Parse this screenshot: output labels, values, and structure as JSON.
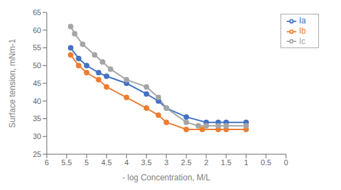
{
  "chart_data": {
    "type": "line",
    "xlabel": "- log Concentration, M/L",
    "ylabel": "Surface tension, mNm-1",
    "xlim": [
      6,
      0
    ],
    "ylim": [
      25,
      65
    ],
    "xticks": [
      6,
      5.5,
      5,
      4.5,
      4,
      3.5,
      3,
      2.5,
      2,
      1.5,
      1,
      0.5,
      0
    ],
    "yticks": [
      25,
      30,
      35,
      40,
      45,
      50,
      55,
      60,
      65
    ],
    "series": [
      {
        "name": "Ia",
        "color": "#4472C4",
        "x": [
          5.4,
          5.2,
          5.0,
          4.7,
          4.5,
          4.0,
          3.5,
          3.2,
          3.0,
          2.5,
          2.0,
          1.7,
          1.5,
          1.0
        ],
        "values": [
          55.0,
          52.0,
          50.0,
          48.0,
          47.0,
          45.0,
          42.0,
          40.0,
          38.0,
          35.5,
          34.0,
          34.0,
          34.0,
          34.0
        ]
      },
      {
        "name": "Ib",
        "color": "#ED7D31",
        "x": [
          5.4,
          5.2,
          5.0,
          4.7,
          4.5,
          4.0,
          3.5,
          3.2,
          3.0,
          2.5,
          2.1,
          1.7,
          1.5,
          1.0
        ],
        "values": [
          53.0,
          50.0,
          48.0,
          46.0,
          44.0,
          41.0,
          38.0,
          36.0,
          34.0,
          32.0,
          32.0,
          32.0,
          32.0,
          32.0
        ]
      },
      {
        "name": "Ic",
        "color": "#A5A5A5",
        "x": [
          5.4,
          5.3,
          5.1,
          4.8,
          4.6,
          4.4,
          4.0,
          3.5,
          3.2,
          3.0,
          2.5,
          2.2,
          2.0,
          1.7,
          1.5,
          1.0
        ],
        "values": [
          61.0,
          59.0,
          56.0,
          53.0,
          51.0,
          49.0,
          46.0,
          44.0,
          41.0,
          38.0,
          34.0,
          33.0,
          33.0,
          33.0,
          33.0,
          33.0
        ]
      }
    ],
    "marker": "circle",
    "legend": "upper right",
    "grid": false
  }
}
